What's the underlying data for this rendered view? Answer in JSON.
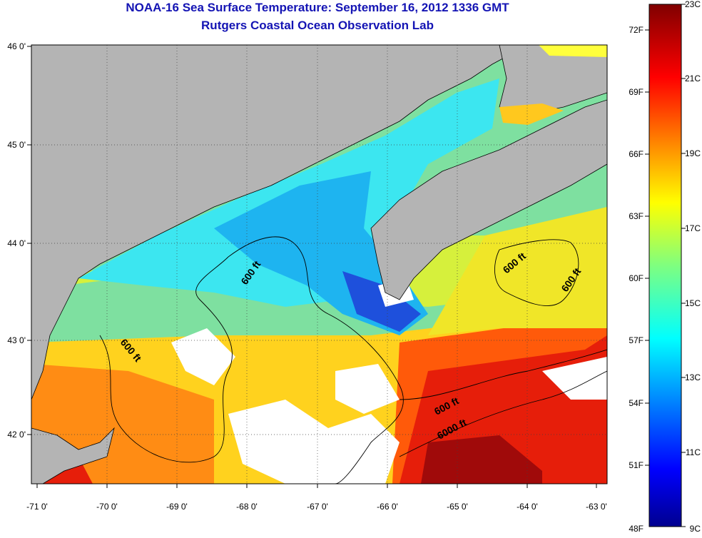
{
  "header": {
    "title_line1": "NOAA-16 Sea Surface Temperature:  September 16, 2012 1336 GMT",
    "title_line2": "Rutgers Coastal Ocean Observation Lab"
  },
  "map": {
    "lon_labels": [
      "-71 0'",
      "-70 0'",
      "-69 0'",
      "-68 0'",
      "-67 0'",
      "-66 0'",
      "-65 0'",
      "-64 0'",
      "-63 0'"
    ],
    "lat_labels": [
      "46 0'",
      "45 0'",
      "44 0'",
      "43 0'",
      "42 0'"
    ],
    "contour_labels": [
      "600 ft",
      "600 ft",
      "600 ft",
      "600 ft",
      "600 ft",
      "6000 ft"
    ],
    "colors": {
      "land": "#b4b4b4",
      "cloud": "#ffffff",
      "contour": "#000000"
    }
  },
  "colorbar": {
    "fahrenheit_labels": [
      "72F",
      "69F",
      "66F",
      "63F",
      "60F",
      "57F",
      "54F",
      "51F",
      "48F"
    ],
    "celsius_labels": [
      "23C",
      "21C",
      "19C",
      "17C",
      "15C",
      "13C",
      "11C",
      "9C"
    ],
    "range_celsius": [
      9,
      23
    ],
    "colormap": "jet"
  }
}
